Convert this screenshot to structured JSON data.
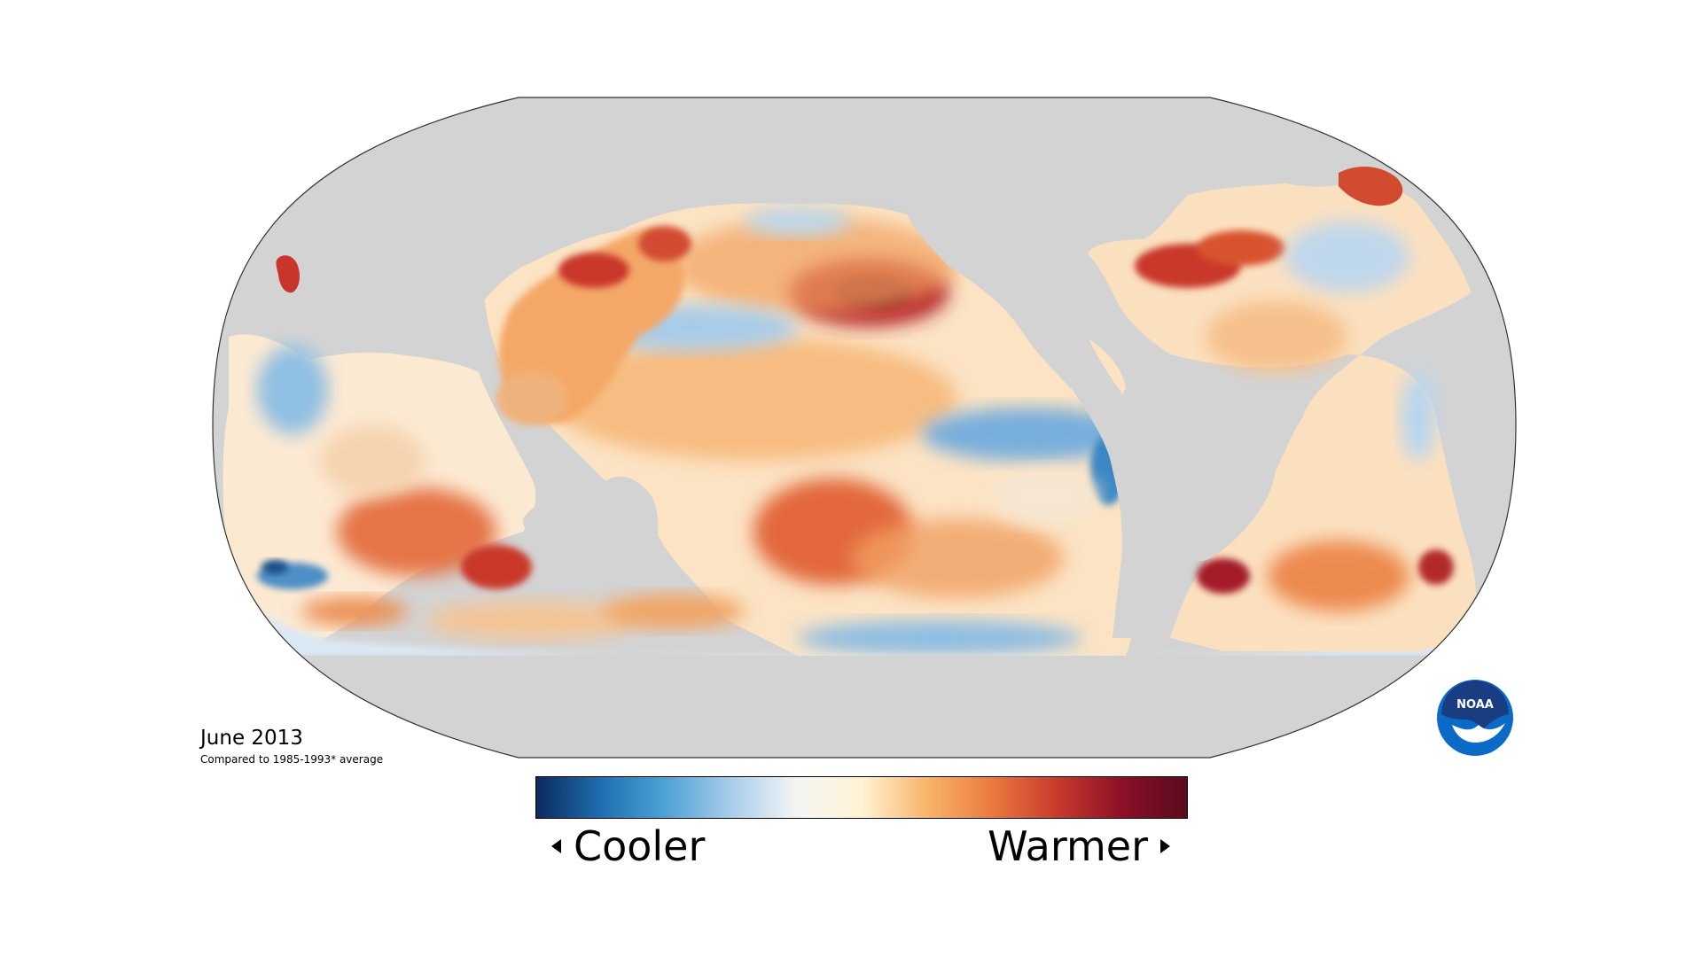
{
  "map": {
    "date": "June 2013",
    "caption": "Compared to 1985-1993* average",
    "projection": "Robinson",
    "land_color": "#d3d3d3",
    "outline_color": "#333333"
  },
  "legend": {
    "cooler_label": "Cooler",
    "warmer_label": "Warmer",
    "gradient_colors": [
      "#0a2a5e",
      "#1f6fb0",
      "#4fa3d6",
      "#a9cde9",
      "#f4f4f4",
      "#fff3d2",
      "#f8b56b",
      "#ea7a3f",
      "#c93a2c",
      "#8c1028",
      "#5a0a1e"
    ]
  },
  "logo": {
    "text": "NOAA",
    "outer_color": "#0b69c7",
    "inner_color": "#1a3c80"
  }
}
